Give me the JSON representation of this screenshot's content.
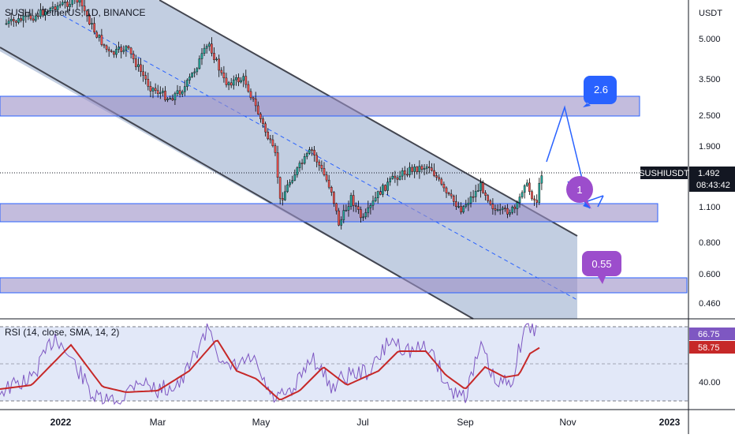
{
  "header": {
    "symbol_title": "SUSHI / TetherUS, 1D, BINANCE",
    "currency": "USDT"
  },
  "price_axis": {
    "ticks": [
      "5.000",
      "3.500",
      "2.500",
      "1.900",
      "1.100",
      "0.800",
      "0.600",
      "0.460"
    ],
    "last_price": "1.492",
    "countdown": "08:43:42",
    "ticker_label": "SUSHIUSDT"
  },
  "rsi": {
    "title": "RSI (14, close, SMA, 14, 2)",
    "value": "66.75",
    "sma_value": "58.75",
    "tick": "40.00"
  },
  "time_axis": {
    "labels": [
      "2022",
      "Mar",
      "May",
      "Jul",
      "Sep",
      "Nov",
      "2023"
    ]
  },
  "annotations": {
    "target_high": "2.6",
    "target_mid": "1",
    "target_low": "0.55"
  },
  "colors": {
    "up": "#26a69a",
    "down": "#ef5350",
    "zone_fill": "#9b8fc7",
    "zone_border": "#2962ff",
    "channel_fill": "#8fa6c9",
    "arrow": "#2962ff",
    "rsi_line": "#7e57c2",
    "rsi_sma": "#c62828",
    "rsi_badge": "#7e57c2",
    "sma_badge": "#c62828",
    "bubble_blue": "#2962ff",
    "bubble_purple": "#9c4dcc"
  }
}
